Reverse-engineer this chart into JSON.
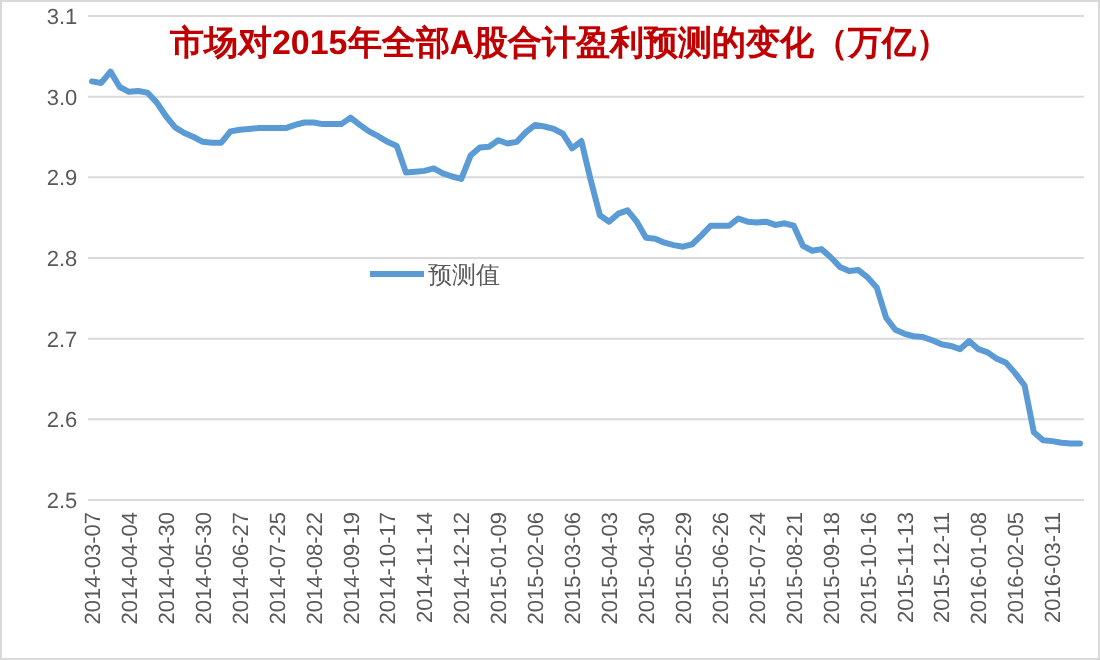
{
  "chart_data": {
    "type": "line",
    "title": "市场对2015年全部A股合计盈利预测的变化（万亿）",
    "categories": [
      "2014-03-07",
      null,
      null,
      null,
      "2014-04-04",
      null,
      null,
      null,
      "2014-04-30",
      null,
      null,
      null,
      "2014-05-30",
      null,
      null,
      null,
      "2014-06-27",
      null,
      null,
      null,
      "2014-07-25",
      null,
      null,
      null,
      "2014-08-22",
      null,
      null,
      null,
      "2014-09-19",
      null,
      null,
      null,
      "2014-10-17",
      null,
      null,
      null,
      "2014-11-14",
      null,
      null,
      null,
      "2014-12-12",
      null,
      null,
      null,
      "2015-01-09",
      null,
      null,
      null,
      "2015-02-06",
      null,
      null,
      null,
      "2015-03-06",
      null,
      null,
      null,
      "2015-04-03",
      null,
      null,
      null,
      "2015-04-30",
      null,
      null,
      null,
      "2015-05-29",
      null,
      null,
      null,
      "2015-06-26",
      null,
      null,
      null,
      "2015-07-24",
      null,
      null,
      null,
      "2015-08-21",
      null,
      null,
      null,
      "2015-09-18",
      null,
      null,
      null,
      "2015-10-16",
      null,
      null,
      null,
      "2015-11-13",
      null,
      null,
      null,
      "2015-12-11",
      null,
      null,
      null,
      "2016-01-08",
      null,
      null,
      null,
      "2016-02-05",
      null,
      null,
      null,
      "2016-03-11",
      null,
      null,
      null
    ],
    "series": [
      {
        "name": "预测值",
        "color": "#5b9bd5",
        "values": [
          3.019,
          3.017,
          3.031,
          3.012,
          3.006,
          3.007,
          3.005,
          2.993,
          2.976,
          2.962,
          2.955,
          2.95,
          2.944,
          2.943,
          2.943,
          2.957,
          2.959,
          2.96,
          2.961,
          2.961,
          2.961,
          2.961,
          2.965,
          2.968,
          2.968,
          2.966,
          2.966,
          2.966,
          2.974,
          2.965,
          2.957,
          2.951,
          2.944,
          2.939,
          2.906,
          2.907,
          2.908,
          2.911,
          2.905,
          2.901,
          2.898,
          2.927,
          2.937,
          2.938,
          2.946,
          2.942,
          2.944,
          2.956,
          2.965,
          2.963,
          2.96,
          2.954,
          2.936,
          2.945,
          2.897,
          2.853,
          2.845,
          2.855,
          2.859,
          2.845,
          2.825,
          2.824,
          2.819,
          2.816,
          2.814,
          2.817,
          2.828,
          2.84,
          2.84,
          2.84,
          2.849,
          2.845,
          2.844,
          2.845,
          2.841,
          2.843,
          2.84,
          2.815,
          2.809,
          2.811,
          2.801,
          2.789,
          2.784,
          2.785,
          2.776,
          2.763,
          2.726,
          2.711,
          2.706,
          2.703,
          2.702,
          2.698,
          2.693,
          2.691,
          2.687,
          2.697,
          2.687,
          2.683,
          2.675,
          2.67,
          2.657,
          2.642,
          2.584,
          2.574,
          2.573,
          2.571,
          2.57,
          2.57
        ]
      }
    ],
    "ylim": [
      2.5,
      3.1
    ],
    "yticks": [
      2.5,
      2.6,
      2.7,
      2.8,
      2.9,
      {
        "value": 3,
        "label": "3.0"
      },
      3.1
    ],
    "grid": "y",
    "legend": "center",
    "marker": "none",
    "line_style": "solid"
  }
}
